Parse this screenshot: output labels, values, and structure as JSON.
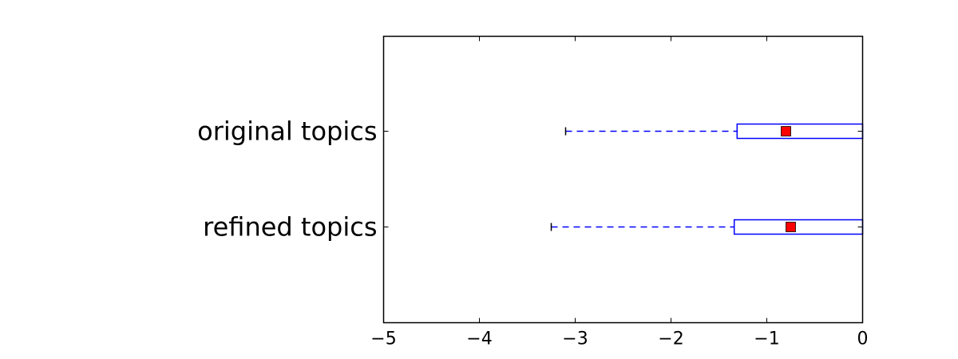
{
  "chart_data": {
    "type": "boxplot",
    "orientation": "horizontal",
    "categories": [
      "original topics",
      "refined topics"
    ],
    "boxes": [
      {
        "label": "original topics",
        "whisker_low": -3.1,
        "q1": -1.31,
        "q3": 0.0,
        "whisker_high": 0.0,
        "mean": -0.8
      },
      {
        "label": "refined topics",
        "whisker_low": -3.25,
        "q1": -1.34,
        "q3": 0.0,
        "whisker_high": 0.0,
        "mean": -0.75
      }
    ],
    "xlim": [
      -5,
      0
    ],
    "xticks": [
      -5,
      -4,
      -3,
      -2,
      -1,
      0
    ],
    "xtick_labels": [
      "−5",
      "−4",
      "−3",
      "−2",
      "−1",
      "0"
    ],
    "title": "",
    "xlabel": "",
    "ylabel": "",
    "grid": false,
    "colors": {
      "box": "#0000ff",
      "mean_marker": "#ff0000",
      "axes": "#000000"
    }
  }
}
